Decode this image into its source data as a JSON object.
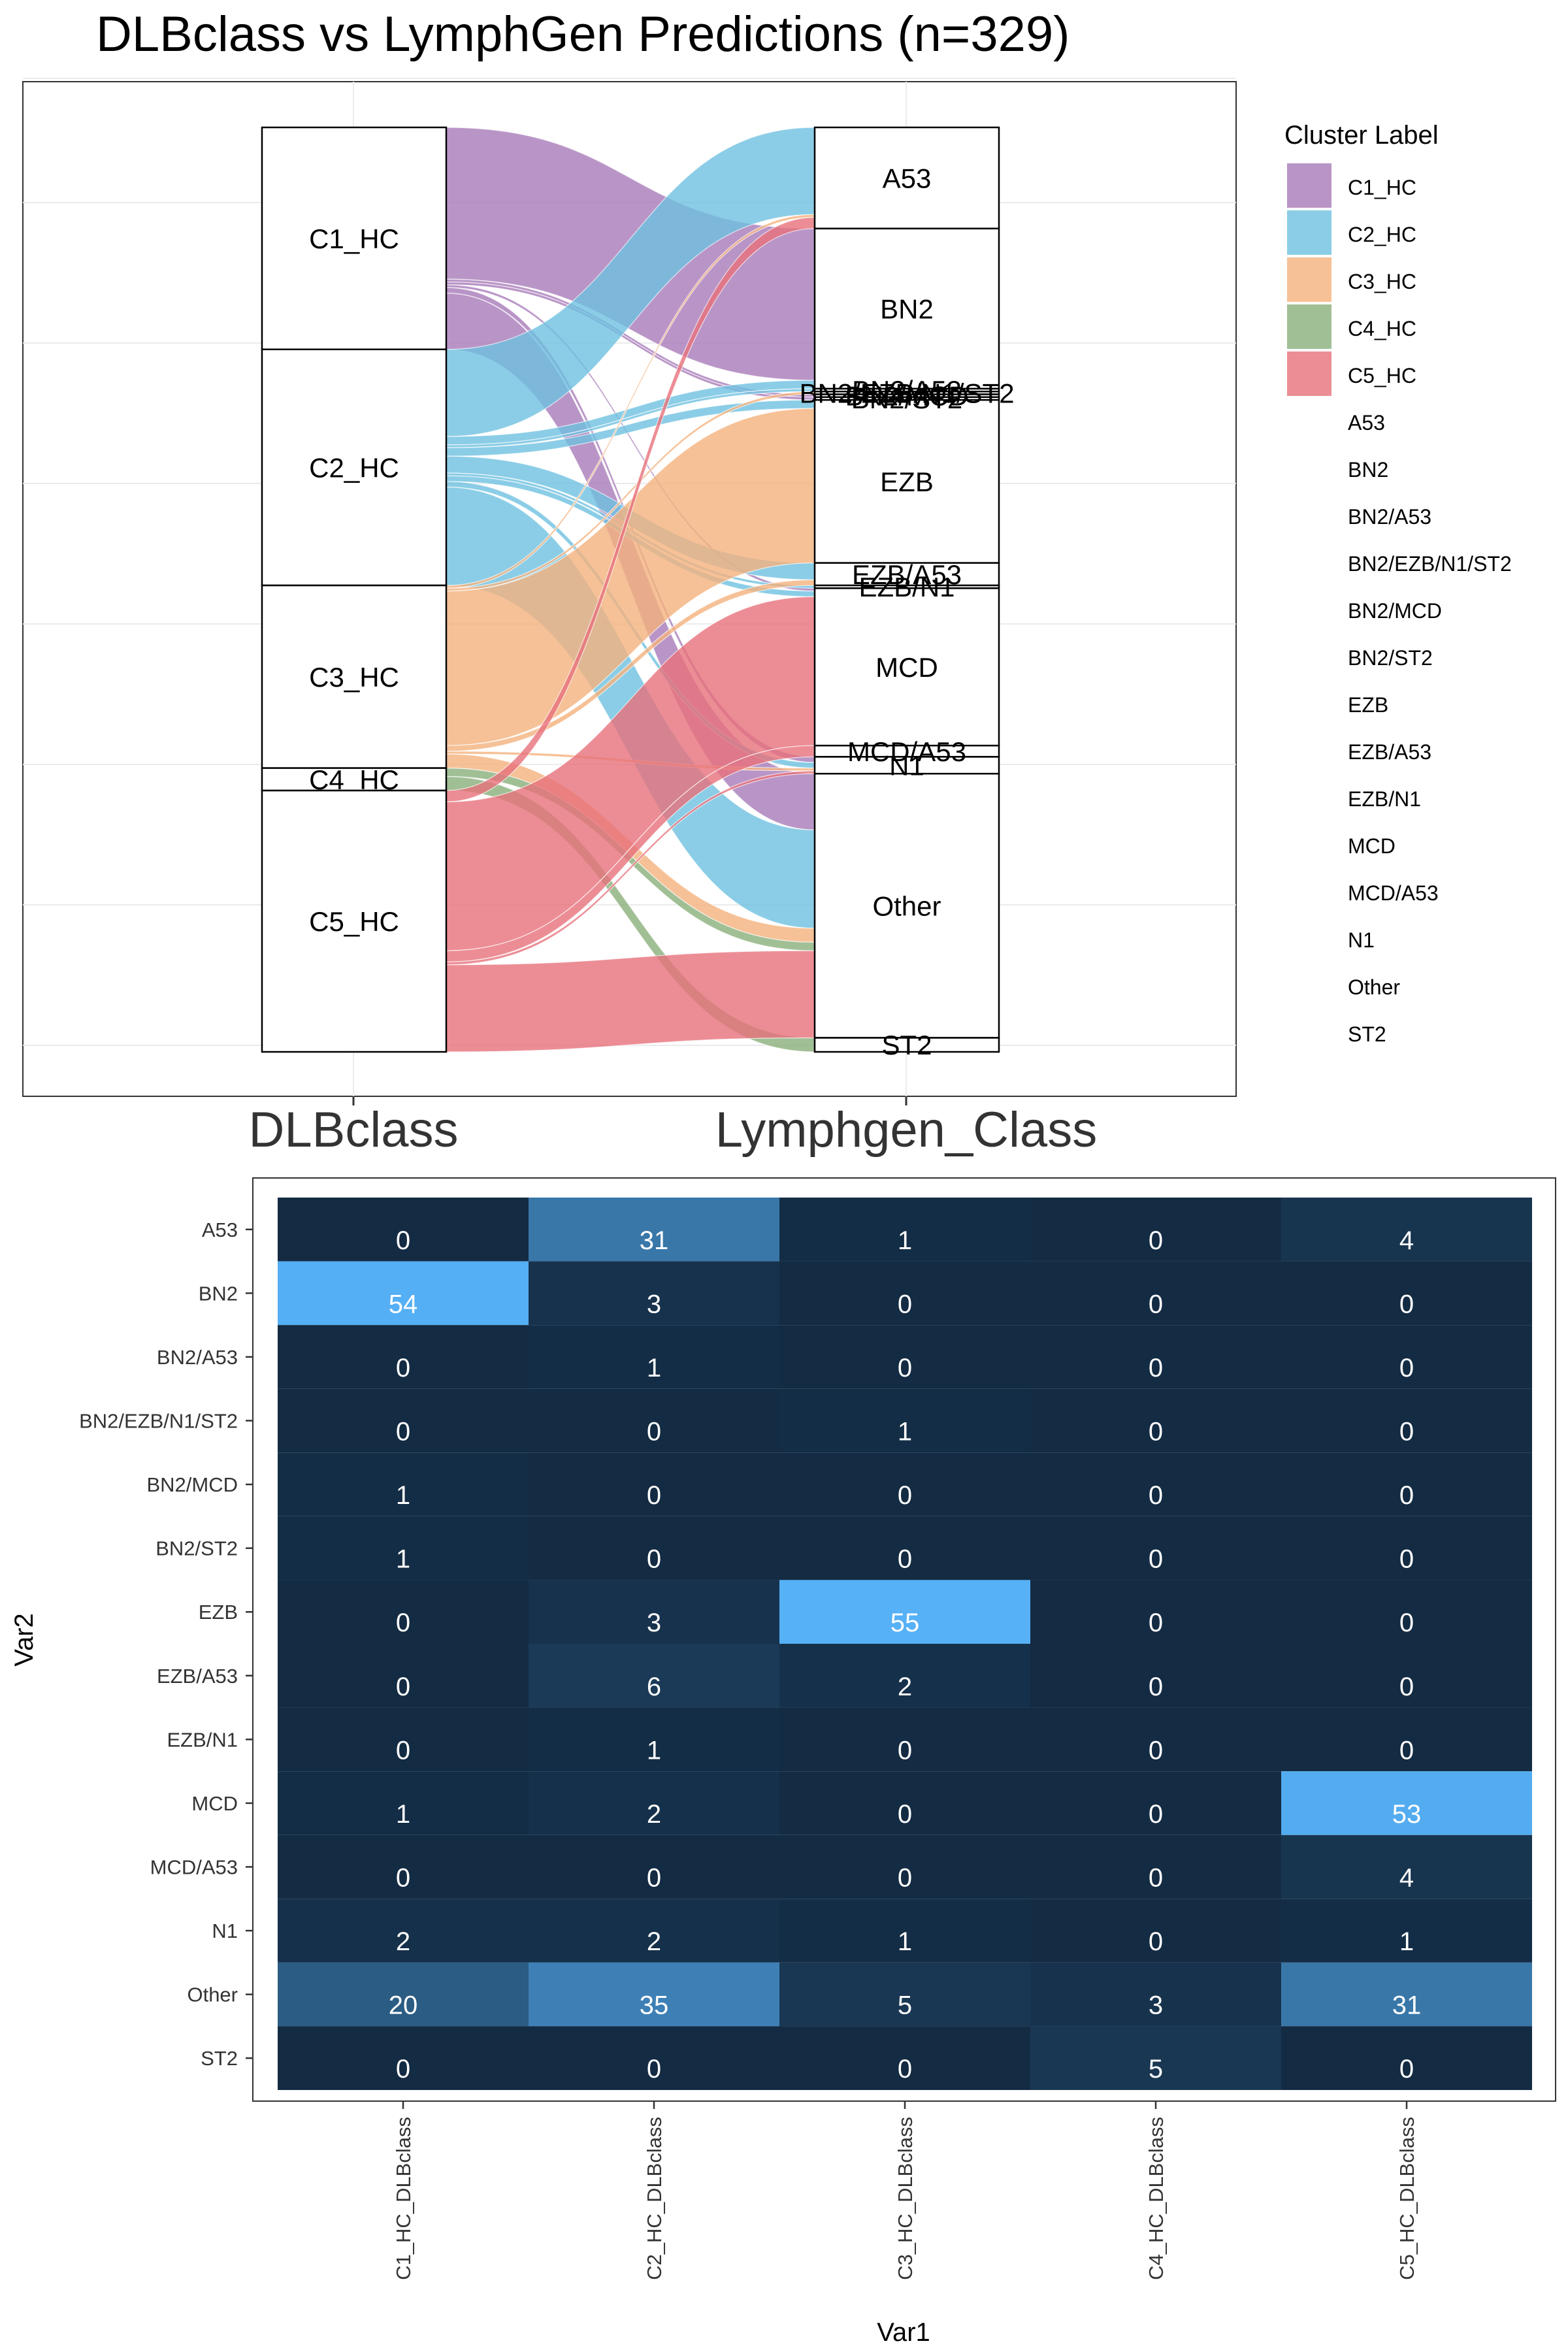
{
  "chart_data": [
    {
      "type": "sankey",
      "title": "DLBclass vs LymphGen Predictions (n=329)",
      "axis_labels": [
        "DLBclass",
        "Lymphgen_Class"
      ],
      "legend": {
        "title": "Cluster Label",
        "placement": "right",
        "entries": [
          "C1_HC",
          "C2_HC",
          "C3_HC",
          "C4_HC",
          "C5_HC",
          "A53",
          "BN2",
          "BN2/A53",
          "BN2/EZB/N1/ST2",
          "BN2/MCD",
          "BN2/ST2",
          "EZB",
          "EZB/A53",
          "EZB/N1",
          "MCD",
          "MCD/A53",
          "N1",
          "Other",
          "ST2"
        ]
      },
      "colors": {
        "C1_HC": "#A87BB9",
        "C2_HC": "#6EC1E0",
        "C3_HC": "#F4B27D",
        "C4_HC": "#8AAF7A",
        "C5_HC": "#E7707A"
      },
      "left_nodes": [
        "C1_HC",
        "C2_HC",
        "C3_HC",
        "C4_HC",
        "C5_HC"
      ],
      "right_nodes": [
        "A53",
        "BN2",
        "BN2/A53",
        "BN2/EZB/N1/ST2",
        "BN2/MCD",
        "BN2/ST2",
        "EZB",
        "EZB/A53",
        "EZB/N1",
        "MCD",
        "MCD/A53",
        "N1",
        "Other",
        "ST2"
      ],
      "flow_opacity": 0.8
    },
    {
      "type": "heatmap",
      "xlabel": "Var1",
      "ylabel": "Var2",
      "x": [
        "C1_HC_DLBclass",
        "C2_HC_DLBclass",
        "C3_HC_DLBclass",
        "C4_HC_DLBclass",
        "C5_HC_DLBclass"
      ],
      "y": [
        "A53",
        "BN2",
        "BN2/A53",
        "BN2/EZB/N1/ST2",
        "BN2/MCD",
        "BN2/ST2",
        "EZB",
        "EZB/A53",
        "EZB/N1",
        "MCD",
        "MCD/A53",
        "N1",
        "Other",
        "ST2"
      ],
      "values": [
        [
          0,
          31,
          1,
          0,
          4
        ],
        [
          54,
          3,
          0,
          0,
          0
        ],
        [
          0,
          1,
          0,
          0,
          0
        ],
        [
          0,
          0,
          1,
          0,
          0
        ],
        [
          1,
          0,
          0,
          0,
          0
        ],
        [
          1,
          0,
          0,
          0,
          0
        ],
        [
          0,
          3,
          55,
          0,
          0
        ],
        [
          0,
          6,
          2,
          0,
          0
        ],
        [
          0,
          1,
          0,
          0,
          0
        ],
        [
          1,
          2,
          0,
          0,
          53
        ],
        [
          0,
          0,
          0,
          0,
          4
        ],
        [
          2,
          2,
          1,
          0,
          1
        ],
        [
          20,
          35,
          5,
          3,
          31
        ],
        [
          0,
          0,
          0,
          5,
          0
        ]
      ],
      "color_low": "#132B43",
      "color_high": "#56B1F7",
      "grid": true
    }
  ]
}
